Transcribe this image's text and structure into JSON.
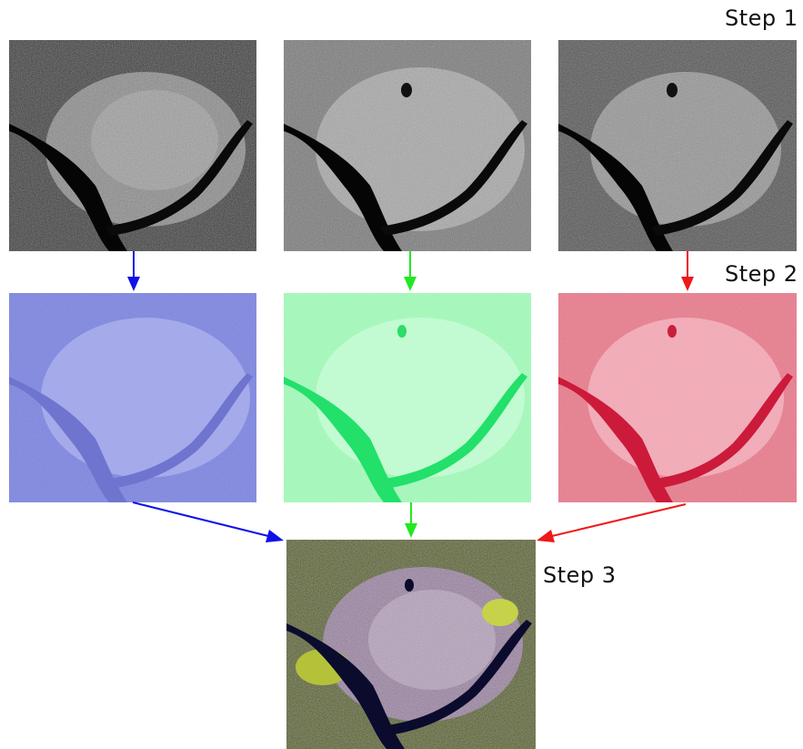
{
  "steps": {
    "step1": "Step 1",
    "step2": "Step 2",
    "step3": "Step 3"
  },
  "colors": {
    "blue": "#1010e8",
    "green": "#22e822",
    "red": "#f01818"
  },
  "panels": {
    "row1": [
      "grayscale-band-1",
      "grayscale-band-2",
      "grayscale-band-3"
    ],
    "row2": [
      "blue-tinted",
      "green-tinted",
      "red-tinted"
    ],
    "result": "true-color-composite"
  }
}
